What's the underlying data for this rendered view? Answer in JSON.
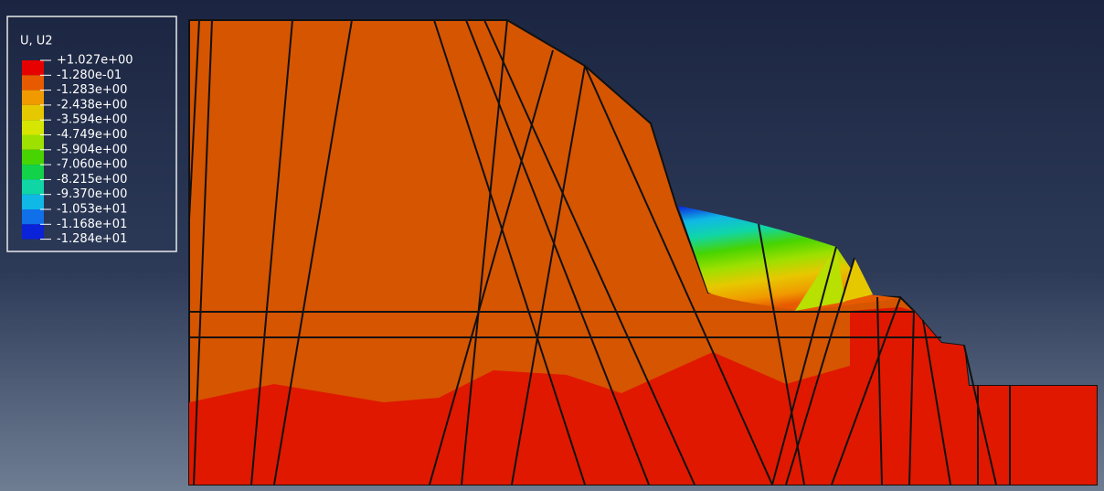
{
  "legend": {
    "title": "U, U2",
    "labels": [
      "+1.027e+00",
      "-1.280e-01",
      "-1.283e+00",
      "-2.438e+00",
      "-3.594e+00",
      "-4.749e+00",
      "-5.904e+00",
      "-7.060e+00",
      "-8.215e+00",
      "-9.370e+00",
      "-1.053e+01",
      "-1.168e+01",
      "-1.284e+01"
    ],
    "colors": [
      "#e60000",
      "#e85a00",
      "#f09a00",
      "#e6c800",
      "#d6e600",
      "#9ee000",
      "#48d400",
      "#12d24a",
      "#10d6a6",
      "#10b8e6",
      "#1070ea",
      "#0a22d8"
    ]
  }
}
